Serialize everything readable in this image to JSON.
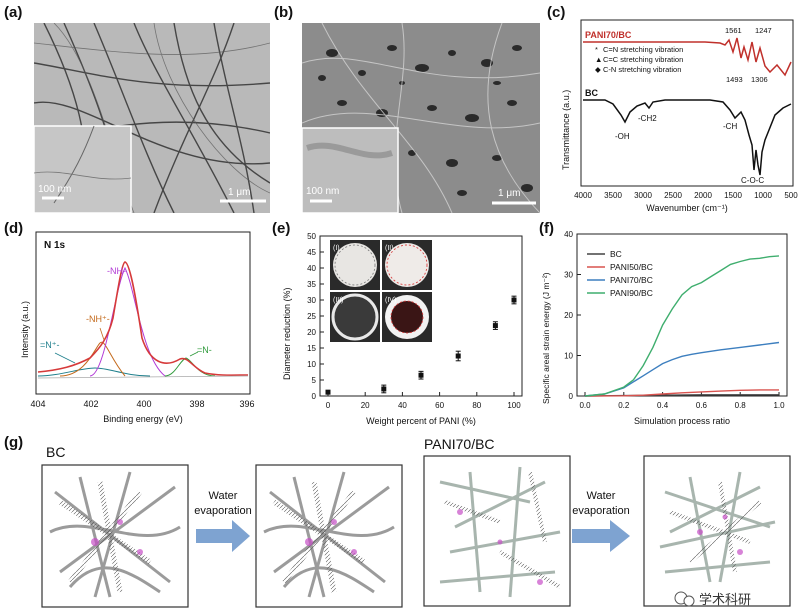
{
  "panel_a": {
    "label": "(a)",
    "inset_scale": "100 nm",
    "main_scale": "1 μm"
  },
  "panel_b": {
    "label": "(b)",
    "inset_scale": "100 nm",
    "main_scale": "1 μm"
  },
  "panel_c": {
    "label": "(c)",
    "top_series": "PANI70/BC",
    "bottom_series": "BC",
    "peaks_top": [
      "1561",
      "1247",
      "1493",
      "1306"
    ],
    "legend": [
      {
        "symbol": "*",
        "text": "C=N stretching vibration"
      },
      {
        "symbol": "▲",
        "text": "C=C stretching vibration"
      },
      {
        "symbol": "◆",
        "text": "C-N stretching vibration"
      }
    ],
    "bands": [
      "-OH",
      "-CH2",
      "-CH",
      "C-O-C"
    ],
    "ylabel": "Transmittance (a.u.)",
    "xlabel": "Wavenumber (cm⁻¹)",
    "xticks": [
      "4000",
      "3500",
      "3000",
      "2500",
      "2000",
      "1500",
      "1000",
      "500"
    ],
    "colors": {
      "top": "#c0302b",
      "bottom": "#111111"
    }
  },
  "panel_d": {
    "label": "(d)",
    "title": "N 1s",
    "ylabel": "Intensity (a.u.)",
    "xlabel": "Binding energy (eV)",
    "xticks": [
      "404",
      "402",
      "400",
      "398",
      "396"
    ],
    "peaks": [
      {
        "text": "-NH-",
        "color": "#b23ad6"
      },
      {
        "text": "-NH⁺-",
        "color": "#c46a1c"
      },
      {
        "text": "=N⁺-",
        "color": "#1f7f8c"
      },
      {
        "text": "=N-",
        "color": "#2f9a3b"
      }
    ]
  },
  "panel_e": {
    "label": "(e)",
    "ylabel": "Diameter reduction (%)",
    "xlabel": "Weight percent of PANI (%)",
    "insets": [
      "(I)",
      "(II)",
      "(III)",
      "(IV)"
    ]
  },
  "panel_f": {
    "label": "(f)",
    "ylabel": "Specific areal strain energy (J m⁻²)",
    "xlabel": "Simulation process ratio"
  },
  "panel_g": {
    "label": "(g)",
    "left_title": "BC",
    "right_title": "PANI70/BC",
    "arrow_text_1": "Water",
    "arrow_text_2": "evaporation",
    "watermark": "学术科研"
  },
  "chart_data": [
    {
      "id": "e",
      "type": "scatter",
      "x": [
        0,
        30,
        50,
        70,
        90,
        100
      ],
      "y": [
        1.2,
        2.2,
        6.5,
        12.5,
        22,
        30
      ],
      "yerr": [
        0.5,
        1.2,
        1.2,
        1.5,
        1.2,
        1.2
      ],
      "xlabel": "Weight percent of PANI (%)",
      "ylabel": "Diameter reduction (%)",
      "xlim": [
        0,
        100
      ],
      "ylim": [
        0,
        50
      ],
      "xticks": [
        0,
        20,
        40,
        60,
        80,
        100
      ],
      "yticks": [
        0,
        5,
        10,
        15,
        20,
        25,
        30,
        35,
        40,
        45,
        50
      ]
    },
    {
      "id": "f",
      "type": "line",
      "xlabel": "Simulation process ratio",
      "ylabel": "Specific areal strain energy (J m⁻²)",
      "xlim": [
        0,
        1
      ],
      "ylim": [
        0,
        40
      ],
      "xticks": [
        0.0,
        0.2,
        0.4,
        0.6,
        0.8,
        1.0
      ],
      "yticks": [
        0,
        10,
        20,
        30,
        40
      ],
      "legend_position": "top-left",
      "series": [
        {
          "name": "BC",
          "color": "#444444",
          "x": [
            0,
            0.2,
            0.4,
            0.6,
            0.8,
            1.0
          ],
          "y": [
            0,
            0.1,
            0.2,
            0.3,
            0.3,
            0.3
          ]
        },
        {
          "name": "PANI50/BC",
          "color": "#d9534f",
          "x": [
            0,
            0.2,
            0.3,
            0.4,
            0.5,
            0.6,
            0.7,
            0.8,
            0.9,
            1.0
          ],
          "y": [
            0,
            0.05,
            0.2,
            0.5,
            0.8,
            1.0,
            1.2,
            1.4,
            1.5,
            1.5
          ]
        },
        {
          "name": "PANI70/BC",
          "color": "#3d7fbf",
          "x": [
            0,
            0.1,
            0.2,
            0.25,
            0.3,
            0.35,
            0.4,
            0.45,
            0.5,
            0.55,
            0.6,
            0.7,
            0.8,
            0.9,
            1.0
          ],
          "y": [
            0,
            0.5,
            2.0,
            3.5,
            5.0,
            6.5,
            8.0,
            9.0,
            9.8,
            10.3,
            10.7,
            11.4,
            12.0,
            12.6,
            13.2
          ]
        },
        {
          "name": "PANI90/BC",
          "color": "#3fae6e",
          "x": [
            0,
            0.1,
            0.2,
            0.25,
            0.3,
            0.35,
            0.4,
            0.45,
            0.5,
            0.55,
            0.6,
            0.65,
            0.7,
            0.75,
            0.8,
            0.85,
            0.9,
            0.95,
            1.0
          ],
          "y": [
            0,
            0.5,
            2.2,
            4.0,
            7.5,
            12.0,
            17.5,
            21.5,
            25.0,
            27.0,
            28.0,
            29.5,
            31.0,
            32.5,
            33.2,
            33.8,
            34.0,
            34.4,
            34.6
          ]
        }
      ]
    }
  ]
}
